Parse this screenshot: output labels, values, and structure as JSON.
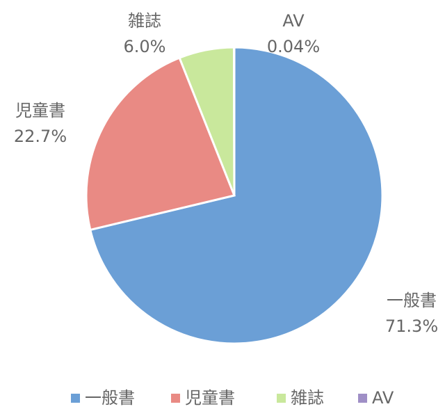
{
  "chart_data": {
    "type": "pie",
    "categories": [
      "一般書",
      "児童書",
      "雑誌",
      "AV"
    ],
    "values": [
      71.3,
      22.7,
      6.0,
      0.04
    ],
    "value_labels": [
      "71.3%",
      "22.7%",
      "6.0%",
      "0.04%"
    ],
    "colors": [
      "#6b9fd6",
      "#e98a84",
      "#c9e89c",
      "#9f8fc6"
    ],
    "legend": "bottom"
  }
}
